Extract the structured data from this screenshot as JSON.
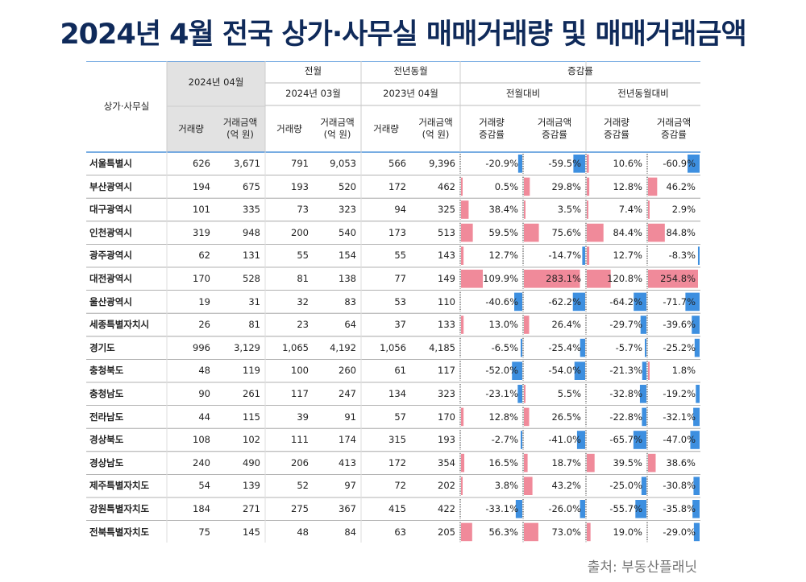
{
  "title": "2024년 4월 전국 상가·사무실 매매거래량 및 매매거래금액",
  "source": "출처: 부동산플래닛",
  "chart_data": {
    "type": "table",
    "headers": {
      "region": "상가·사무실",
      "current": "2024년 04월",
      "prev_month_group": "전월",
      "prev_month": "2024년 03월",
      "prev_year_group": "전년동월",
      "prev_year": "2023년 04월",
      "change_group": "증감률",
      "mom_group": "전월대비",
      "yoy_group": "전년동월대비",
      "volume": "거래량",
      "amount_line1": "거래금액",
      "amount_line2": "(억 원)",
      "vol_change_line1": "거래량",
      "amt_change_line1": "거래금액",
      "change_line2": "증감률"
    },
    "rows": [
      {
        "region": "서울특별시",
        "v24_04": "626",
        "a24_04": "3,671",
        "v24_03": "791",
        "a24_03": "9,053",
        "v23_04": "566",
        "a23_04": "9,396",
        "mom_v": -20.9,
        "mom_a": -59.5,
        "yoy_v": 10.6,
        "yoy_a": -60.9
      },
      {
        "region": "부산광역시",
        "v24_04": "194",
        "a24_04": "675",
        "v24_03": "193",
        "a24_03": "520",
        "v23_04": "172",
        "a23_04": "462",
        "mom_v": 0.5,
        "mom_a": 29.8,
        "yoy_v": 12.8,
        "yoy_a": 46.2
      },
      {
        "region": "대구광역시",
        "v24_04": "101",
        "a24_04": "335",
        "v24_03": "73",
        "a24_03": "323",
        "v23_04": "94",
        "a23_04": "325",
        "mom_v": 38.4,
        "mom_a": 3.5,
        "yoy_v": 7.4,
        "yoy_a": 2.9
      },
      {
        "region": "인천광역시",
        "v24_04": "319",
        "a24_04": "948",
        "v24_03": "200",
        "a24_03": "540",
        "v23_04": "173",
        "a23_04": "513",
        "mom_v": 59.5,
        "mom_a": 75.6,
        "yoy_v": 84.4,
        "yoy_a": 84.8
      },
      {
        "region": "광주광역시",
        "v24_04": "62",
        "a24_04": "131",
        "v24_03": "55",
        "a24_03": "154",
        "v23_04": "55",
        "a23_04": "143",
        "mom_v": 12.7,
        "mom_a": -14.7,
        "yoy_v": 12.7,
        "yoy_a": -8.3
      },
      {
        "region": "대전광역시",
        "v24_04": "170",
        "a24_04": "528",
        "v24_03": "81",
        "a24_03": "138",
        "v23_04": "77",
        "a23_04": "149",
        "mom_v": 109.9,
        "mom_a": 283.1,
        "yoy_v": 120.8,
        "yoy_a": 254.8
      },
      {
        "region": "울산광역시",
        "v24_04": "19",
        "a24_04": "31",
        "v24_03": "32",
        "a24_03": "83",
        "v23_04": "53",
        "a23_04": "110",
        "mom_v": -40.6,
        "mom_a": -62.2,
        "yoy_v": -64.2,
        "yoy_a": -71.7
      },
      {
        "region": "세종특별자치시",
        "v24_04": "26",
        "a24_04": "81",
        "v24_03": "23",
        "a24_03": "64",
        "v23_04": "37",
        "a23_04": "133",
        "mom_v": 13.0,
        "mom_a": 26.4,
        "yoy_v": -29.7,
        "yoy_a": -39.6
      },
      {
        "region": "경기도",
        "v24_04": "996",
        "a24_04": "3,129",
        "v24_03": "1,065",
        "a24_03": "4,192",
        "v23_04": "1,056",
        "a23_04": "4,185",
        "mom_v": -6.5,
        "mom_a": -25.4,
        "yoy_v": -5.7,
        "yoy_a": -25.2
      },
      {
        "region": "충청북도",
        "v24_04": "48",
        "a24_04": "119",
        "v24_03": "100",
        "a24_03": "260",
        "v23_04": "61",
        "a23_04": "117",
        "mom_v": -52.0,
        "mom_a": -54.0,
        "yoy_v": -21.3,
        "yoy_a": 1.8
      },
      {
        "region": "충청남도",
        "v24_04": "90",
        "a24_04": "261",
        "v24_03": "117",
        "a24_03": "247",
        "v23_04": "134",
        "a23_04": "323",
        "mom_v": -23.1,
        "mom_a": 5.5,
        "yoy_v": -32.8,
        "yoy_a": -19.2
      },
      {
        "region": "전라남도",
        "v24_04": "44",
        "a24_04": "115",
        "v24_03": "39",
        "a24_03": "91",
        "v23_04": "57",
        "a23_04": "170",
        "mom_v": 12.8,
        "mom_a": 26.5,
        "yoy_v": -22.8,
        "yoy_a": -32.1
      },
      {
        "region": "경상북도",
        "v24_04": "108",
        "a24_04": "102",
        "v24_03": "111",
        "a24_03": "174",
        "v23_04": "315",
        "a23_04": "193",
        "mom_v": -2.7,
        "mom_a": -41.0,
        "yoy_v": -65.7,
        "yoy_a": -47.0
      },
      {
        "region": "경상남도",
        "v24_04": "240",
        "a24_04": "490",
        "v24_03": "206",
        "a24_03": "413",
        "v23_04": "172",
        "a23_04": "354",
        "mom_v": 16.5,
        "mom_a": 18.7,
        "yoy_v": 39.5,
        "yoy_a": 38.6
      },
      {
        "region": "제주특별자치도",
        "v24_04": "54",
        "a24_04": "139",
        "v24_03": "52",
        "a24_03": "97",
        "v23_04": "72",
        "a23_04": "202",
        "mom_v": 3.8,
        "mom_a": 43.2,
        "yoy_v": -25.0,
        "yoy_a": -30.8
      },
      {
        "region": "강원특별자치도",
        "v24_04": "184",
        "a24_04": "271",
        "v24_03": "275",
        "a24_03": "367",
        "v23_04": "415",
        "a23_04": "422",
        "mom_v": -33.1,
        "mom_a": -26.0,
        "yoy_v": -55.7,
        "yoy_a": -35.8
      },
      {
        "region": "전북특별자치도",
        "v24_04": "75",
        "a24_04": "145",
        "v24_03": "48",
        "a24_03": "84",
        "v23_04": "63",
        "a23_04": "205",
        "mom_v": 56.3,
        "mom_a": 73.0,
        "yoy_v": 19.0,
        "yoy_a": -29.0
      }
    ],
    "colors": {
      "positive": "#f08a9a",
      "negative": "#3d8fe0",
      "highlight_header": "#e2e2e2",
      "rule": "#4a90d9"
    }
  }
}
